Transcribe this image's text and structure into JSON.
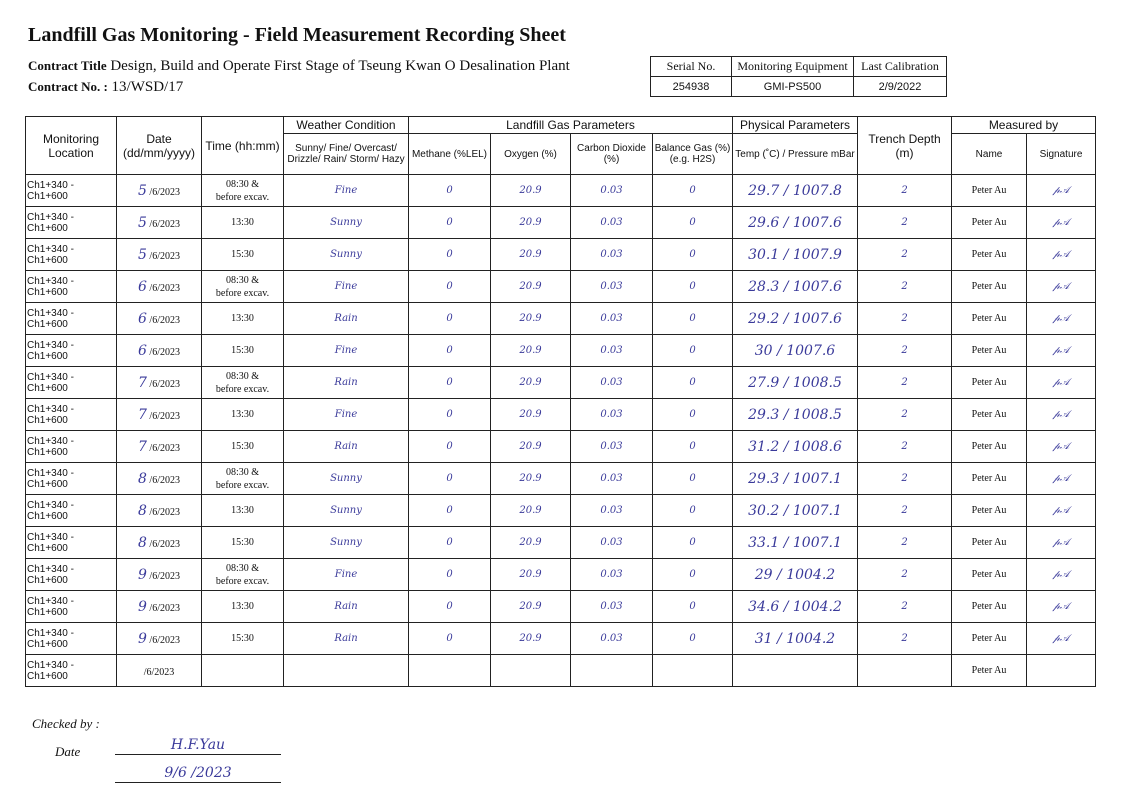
{
  "title": "Landfill Gas Monitoring - Field Measurement Recording Sheet",
  "contract": {
    "title_label": "Contract Title",
    "title_value": "Design, Build and Operate First Stage of Tseung Kwan O Desalination Plant",
    "no_label": "Contract No. :",
    "no_value": "13/WSD/17"
  },
  "equipment": {
    "headers": [
      "Serial No.",
      "Monitoring Equipment",
      "Last Calibration"
    ],
    "values": [
      "254938",
      "GMI-PS500",
      "2/9/2022"
    ]
  },
  "table": {
    "headers": {
      "location": "Monitoring Location",
      "date": "Date (dd/mm/yyyy)",
      "time": "Time (hh:mm)",
      "weather_group": "Weather Condition",
      "weather": "Sunny/ Fine/ Overcast/ Drizzle/ Rain/ Storm/ Hazy",
      "gas_group": "Landfill Gas Parameters",
      "methane": "Methane (%LEL)",
      "oxygen": "Oxygen (%)",
      "co2": "Carbon Dioxide (%)",
      "balance": "Balance Gas (%) (e.g. H2S)",
      "phys_group": "Physical Parameters",
      "temp_pressure": "Temp (˚C) / Pressure mBar",
      "depth": "Trench Depth (m)",
      "measured_group": "Measured by",
      "name": "Name",
      "signature": "Signature"
    },
    "rows": [
      {
        "location": "Ch1+340 - Ch1+600",
        "day": "5",
        "date": "/6/2023",
        "time": "08:30 &",
        "time2": "before excav.",
        "weather": "Fine",
        "methane": "0",
        "oxygen": "20.9",
        "co2": "0.03",
        "balance": "0",
        "temp": "29.7",
        "pressure": "1007.8",
        "depth": "2",
        "name": "Peter Au"
      },
      {
        "location": "Ch1+340 - Ch1+600",
        "day": "5",
        "date": "/6/2023",
        "time": "13:30",
        "time2": "",
        "weather": "Sunny",
        "methane": "0",
        "oxygen": "20.9",
        "co2": "0.03",
        "balance": "0",
        "temp": "29.6",
        "pressure": "1007.6",
        "depth": "2",
        "name": "Peter Au"
      },
      {
        "location": "Ch1+340 - Ch1+600",
        "day": "5",
        "date": "/6/2023",
        "time": "15:30",
        "time2": "",
        "weather": "Sunny",
        "methane": "0",
        "oxygen": "20.9",
        "co2": "0.03",
        "balance": "0",
        "temp": "30.1",
        "pressure": "1007.9",
        "depth": "2",
        "name": "Peter Au"
      },
      {
        "location": "Ch1+340 - Ch1+600",
        "day": "6",
        "date": "/6/2023",
        "time": "08:30 &",
        "time2": "before excav.",
        "weather": "Fine",
        "methane": "0",
        "oxygen": "20.9",
        "co2": "0.03",
        "balance": "0",
        "temp": "28.3",
        "pressure": "1007.6",
        "depth": "2",
        "name": "Peter Au"
      },
      {
        "location": "Ch1+340 - Ch1+600",
        "day": "6",
        "date": "/6/2023",
        "time": "13:30",
        "time2": "",
        "weather": "Rain",
        "methane": "0",
        "oxygen": "20.9",
        "co2": "0.03",
        "balance": "0",
        "temp": "29.2",
        "pressure": "1007.6",
        "depth": "2",
        "name": "Peter Au"
      },
      {
        "location": "Ch1+340 - Ch1+600",
        "day": "6",
        "date": "/6/2023",
        "time": "15:30",
        "time2": "",
        "weather": "Fine",
        "methane": "0",
        "oxygen": "20.9",
        "co2": "0.03",
        "balance": "0",
        "temp": "30",
        "pressure": "1007.6",
        "depth": "2",
        "name": "Peter Au"
      },
      {
        "location": "Ch1+340 - Ch1+600",
        "day": "7",
        "date": "/6/2023",
        "time": "08:30 &",
        "time2": "before excav.",
        "weather": "Rain",
        "methane": "0",
        "oxygen": "20.9",
        "co2": "0.03",
        "balance": "0",
        "temp": "27.9",
        "pressure": "1008.5",
        "depth": "2",
        "name": "Peter Au"
      },
      {
        "location": "Ch1+340 - Ch1+600",
        "day": "7",
        "date": "/6/2023",
        "time": "13:30",
        "time2": "",
        "weather": "Fine",
        "methane": "0",
        "oxygen": "20.9",
        "co2": "0.03",
        "balance": "0",
        "temp": "29.3",
        "pressure": "1008.5",
        "depth": "2",
        "name": "Peter Au"
      },
      {
        "location": "Ch1+340 - Ch1+600",
        "day": "7",
        "date": "/6/2023",
        "time": "15:30",
        "time2": "",
        "weather": "Rain",
        "methane": "0",
        "oxygen": "20.9",
        "co2": "0.03",
        "balance": "0",
        "temp": "31.2",
        "pressure": "1008.6",
        "depth": "2",
        "name": "Peter Au"
      },
      {
        "location": "Ch1+340 - Ch1+600",
        "day": "8",
        "date": "/6/2023",
        "time": "08:30 &",
        "time2": "before excav.",
        "weather": "Sunny",
        "methane": "0",
        "oxygen": "20.9",
        "co2": "0.03",
        "balance": "0",
        "temp": "29.3",
        "pressure": "1007.1",
        "depth": "2",
        "name": "Peter Au"
      },
      {
        "location": "Ch1+340 - Ch1+600",
        "day": "8",
        "date": "/6/2023",
        "time": "13:30",
        "time2": "",
        "weather": "Sunny",
        "methane": "0",
        "oxygen": "20.9",
        "co2": "0.03",
        "balance": "0",
        "temp": "30.2",
        "pressure": "1007.1",
        "depth": "2",
        "name": "Peter Au"
      },
      {
        "location": "Ch1+340 - Ch1+600",
        "day": "8",
        "date": "/6/2023",
        "time": "15:30",
        "time2": "",
        "weather": "Sunny",
        "methane": "0",
        "oxygen": "20.9",
        "co2": "0.03",
        "balance": "0",
        "temp": "33.1",
        "pressure": "1007.1",
        "depth": "2",
        "name": "Peter Au"
      },
      {
        "location": "Ch1+340 - Ch1+600",
        "day": "9",
        "date": "/6/2023",
        "time": "08:30 &",
        "time2": "before excav.",
        "weather": "Fine",
        "methane": "0",
        "oxygen": "20.9",
        "co2": "0.03",
        "balance": "0",
        "temp": "29",
        "pressure": "1004.2",
        "depth": "2",
        "name": "Peter Au"
      },
      {
        "location": "Ch1+340 - Ch1+600",
        "day": "9",
        "date": "/6/2023",
        "time": "13:30",
        "time2": "",
        "weather": "Rain",
        "methane": "0",
        "oxygen": "20.9",
        "co2": "0.03",
        "balance": "0",
        "temp": "34.6",
        "pressure": "1004.2",
        "depth": "2",
        "name": "Peter Au"
      },
      {
        "location": "Ch1+340 - Ch1+600",
        "day": "9",
        "date": "/6/2023",
        "time": "15:30",
        "time2": "",
        "weather": "Rain",
        "methane": "0",
        "oxygen": "20.9",
        "co2": "0.03",
        "balance": "0",
        "temp": "31",
        "pressure": "1004.2",
        "depth": "2",
        "name": "Peter Au"
      },
      {
        "location": "Ch1+340 - Ch1+600",
        "day": "",
        "date": "/6/2023",
        "time": "",
        "time2": "",
        "weather": "",
        "methane": "",
        "oxygen": "",
        "co2": "",
        "balance": "",
        "temp": "",
        "pressure": "",
        "depth": "",
        "name": "Peter Au"
      }
    ]
  },
  "footer": {
    "checked_label": "Checked by :",
    "checked_value": "H.F.Yau",
    "date_label": "Date",
    "date_value": "9/6 /2023"
  },
  "colors": {
    "ink": "#3a3a9a"
  }
}
